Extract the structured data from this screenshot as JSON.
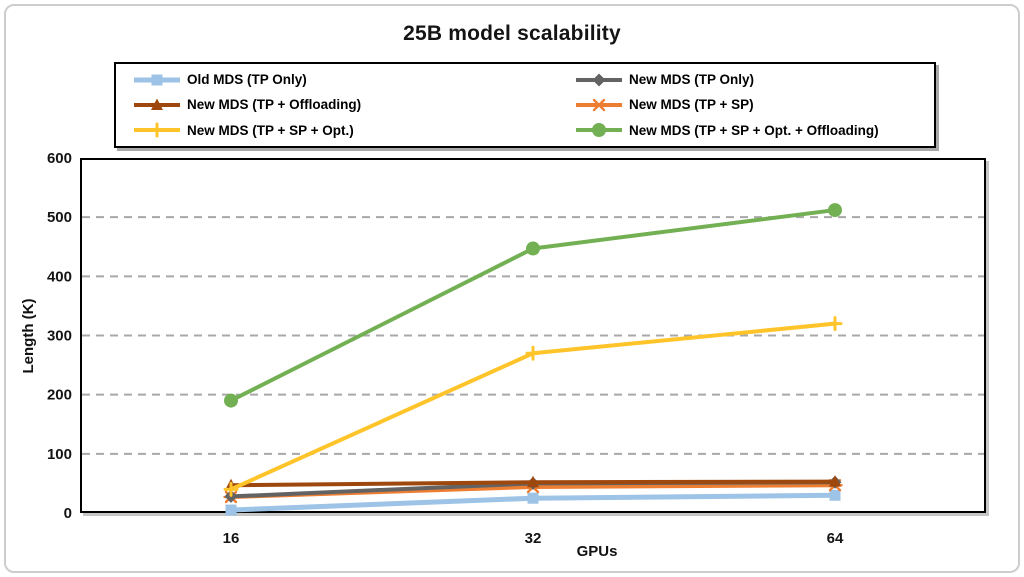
{
  "chart_data": {
    "type": "line",
    "title": "25B model scalability",
    "xlabel": "GPUs",
    "ylabel": "Length (K)",
    "categories": [
      "16",
      "32",
      "64"
    ],
    "ylim": [
      0,
      600
    ],
    "ytick_interval": 100,
    "grid": "horizontal dashed gridlines",
    "legend": {
      "position": "top",
      "boxed": true,
      "columns": 2
    },
    "series": [
      {
        "name": "Old MDS (TP Only)",
        "color": "#9DC3E6",
        "marker": "square",
        "values": [
          5,
          25,
          30
        ]
      },
      {
        "name": "New MDS (TP Only)",
        "color": "#636363",
        "marker": "diamond",
        "values": [
          28,
          50,
          52
        ]
      },
      {
        "name": "New MDS (TP + Offloading)",
        "color": "#9E480E",
        "marker": "triangle",
        "values": [
          47,
          52,
          53
        ]
      },
      {
        "name": "New MDS (TP + SP)",
        "color": "#ED7D31",
        "marker": "star",
        "values": [
          27,
          44,
          47
        ]
      },
      {
        "name": "New MDS (TP + SP + Opt.)",
        "color": "#FFC42A",
        "marker": "plus",
        "values": [
          40,
          270,
          320
        ]
      },
      {
        "name": "New MDS (TP + SP + Opt. + Offloading)",
        "color": "#73B054",
        "marker": "circle",
        "values": [
          190,
          447,
          512
        ]
      }
    ],
    "draw_order": [
      0,
      3,
      1,
      2,
      4,
      5
    ],
    "axis_text_color": "#141414",
    "gridline_color": "#a8a8a8"
  }
}
